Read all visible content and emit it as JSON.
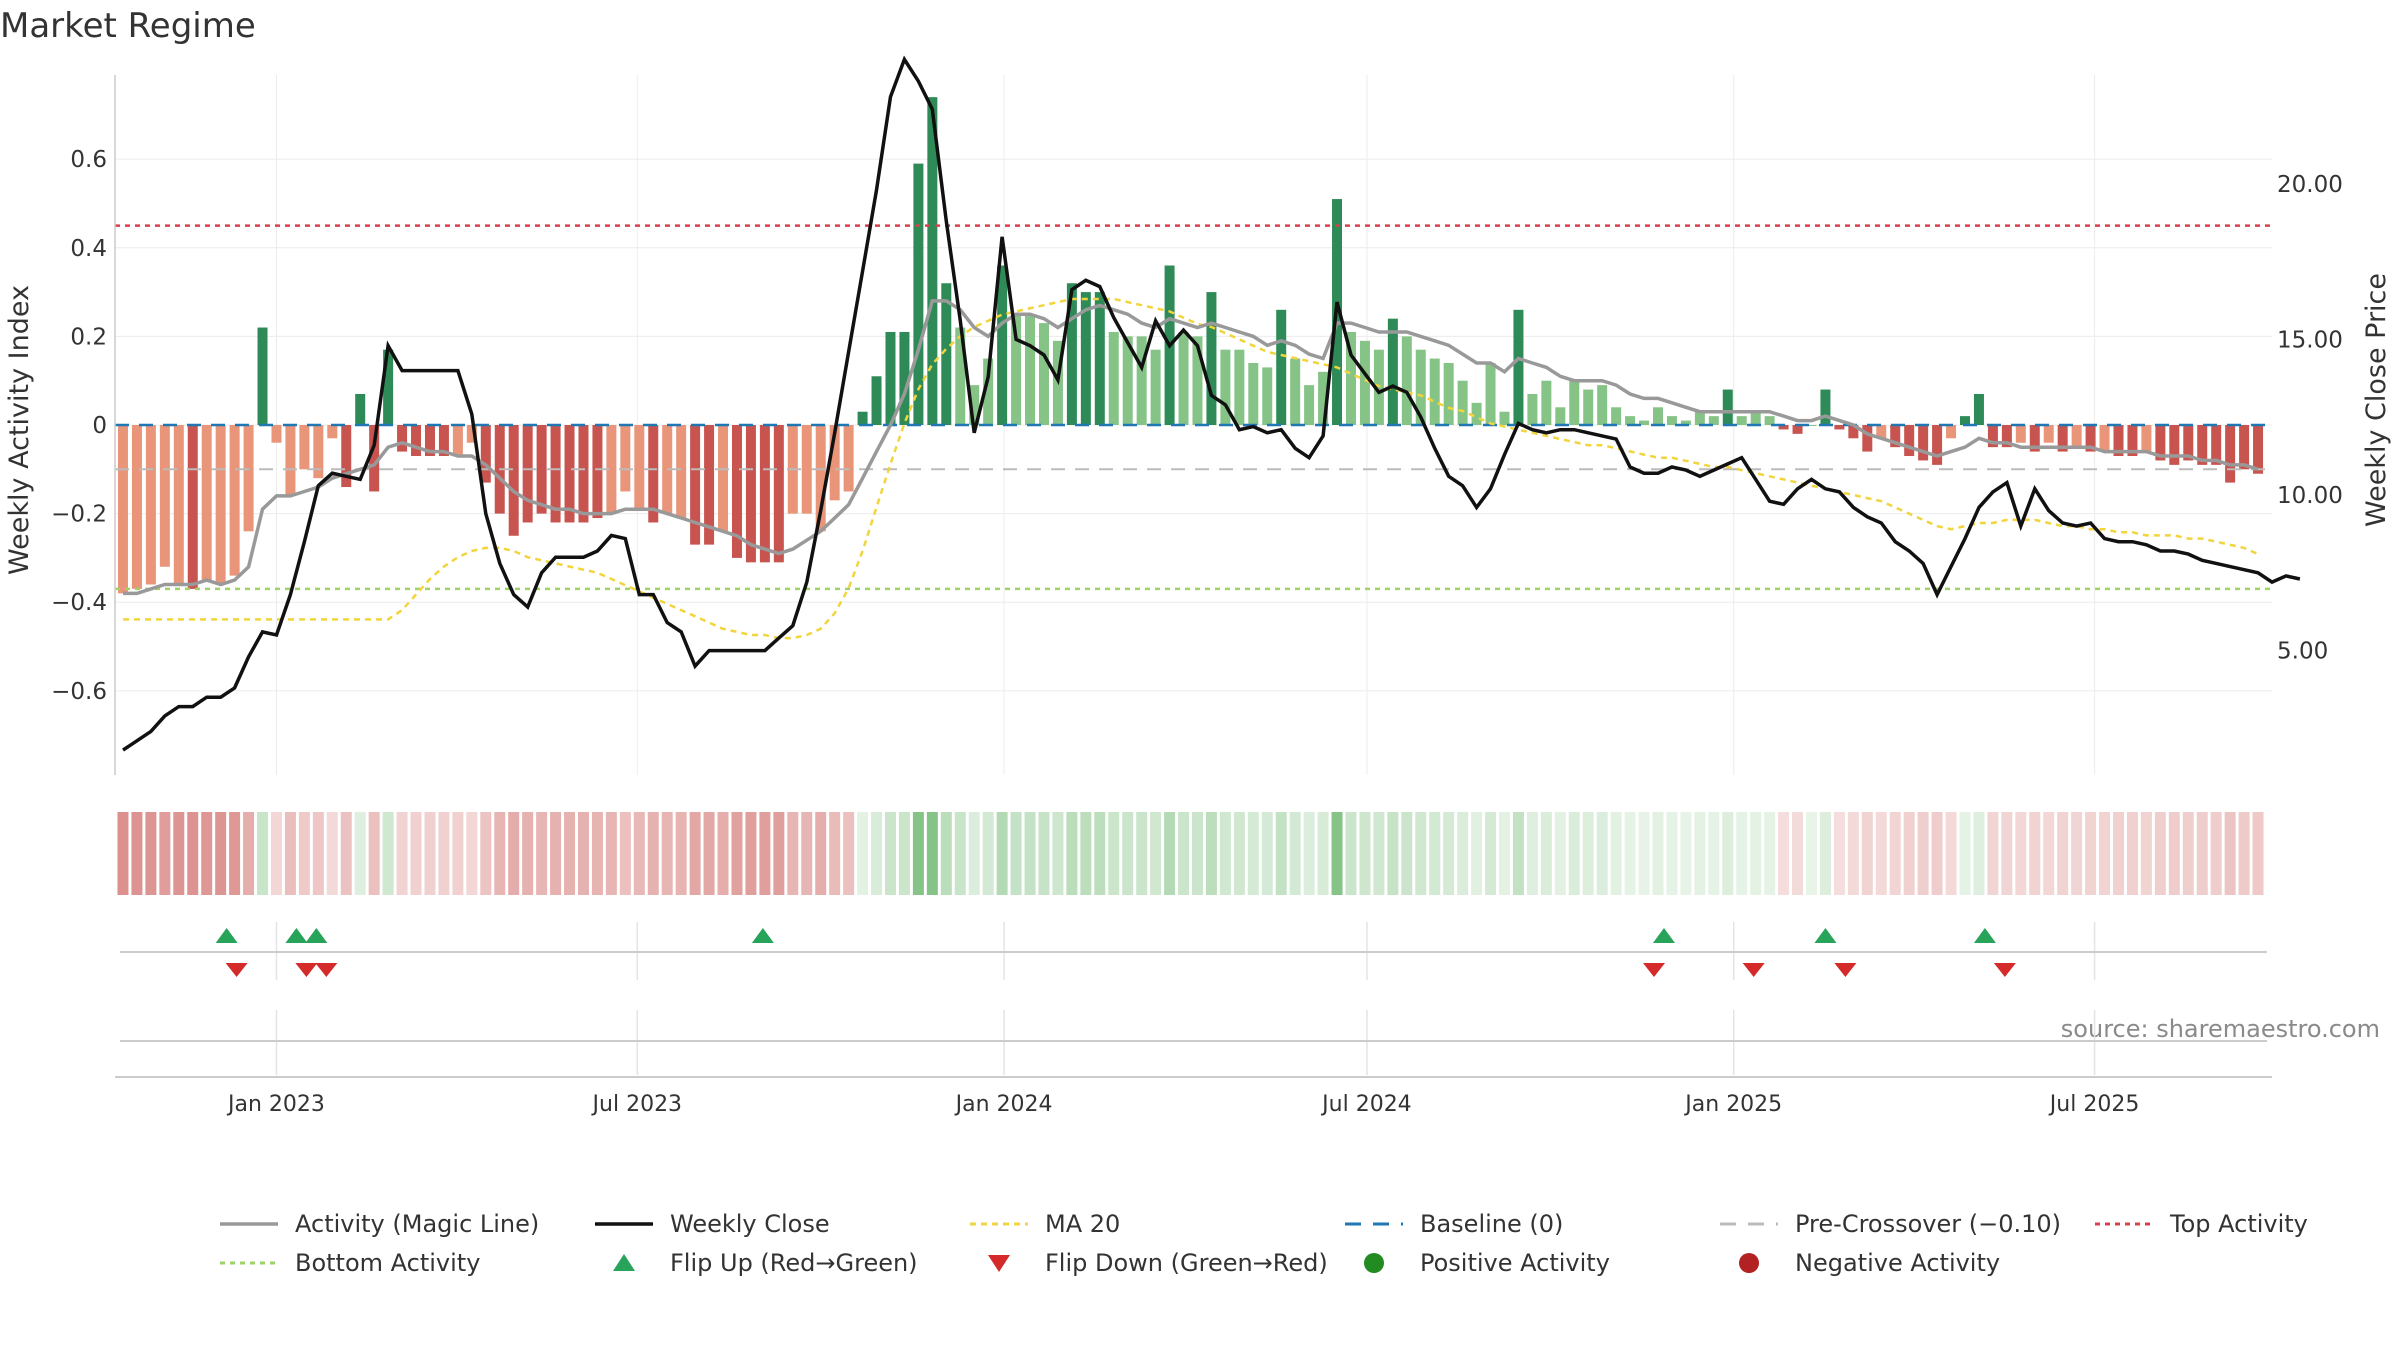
{
  "page": {
    "title": "Market Regime",
    "source": "source: sharemaestro.com"
  },
  "colors": {
    "pos_dark": "#2e8b57",
    "pos_light": "#86c387",
    "neg_dark": "#c85450",
    "neg_light": "#e8957a",
    "magic_line": "#999999",
    "close_line": "#111111",
    "ma20": "#f2d43c",
    "baseline": "#1f77b4",
    "precross": "#bbbbbb",
    "top": "#d9404e",
    "bottom": "#9fd36a",
    "flip_up": "#27a35a",
    "flip_down": "#d42a2a",
    "pos_dot": "#228b22",
    "neg_dot": "#b22222"
  },
  "chart_data": {
    "type": "bar",
    "title": "Market Regime",
    "ylabel": "Weekly Activity Index",
    "y2label": "Weekly Close Price",
    "ylim": [
      -0.79,
      0.79
    ],
    "y2lim": [
      1.0,
      23.5
    ],
    "yticks": [
      0.6,
      0.4,
      0.2,
      0,
      -0.2,
      -0.4,
      -0.6
    ],
    "ytick_labels": [
      "0.6",
      "0.4",
      "0.2",
      "0",
      "−0.2",
      "−0.4",
      "−0.6"
    ],
    "y2ticks": [
      20,
      15,
      10,
      5
    ],
    "y2tick_labels": [
      "20.00",
      "15.00",
      "10.00",
      "5.00"
    ],
    "xlim": [
      "2022-10-12",
      "2025-09-28"
    ],
    "xticks": [
      {
        "date": "2023-01-01",
        "label": "Jan 2023"
      },
      {
        "date": "2023-07-01",
        "label": "Jul 2023"
      },
      {
        "date": "2024-01-01",
        "label": "Jan 2024"
      },
      {
        "date": "2024-07-01",
        "label": "Jul 2024"
      },
      {
        "date": "2025-01-01",
        "label": "Jan 2025"
      },
      {
        "date": "2025-07-01",
        "label": "Jul 2025"
      }
    ],
    "weeks_start": "2022-10-16",
    "activity": [
      -0.38,
      -0.37,
      -0.36,
      -0.32,
      -0.36,
      -0.37,
      -0.35,
      -0.36,
      -0.34,
      -0.24,
      0.22,
      -0.04,
      -0.16,
      -0.1,
      -0.12,
      -0.03,
      -0.14,
      0.07,
      -0.15,
      0.17,
      -0.06,
      -0.07,
      -0.07,
      -0.07,
      -0.07,
      -0.04,
      -0.13,
      -0.2,
      -0.25,
      -0.22,
      -0.2,
      -0.22,
      -0.22,
      -0.22,
      -0.21,
      -0.2,
      -0.15,
      -0.19,
      -0.22,
      -0.2,
      -0.21,
      -0.27,
      -0.27,
      -0.24,
      -0.3,
      -0.31,
      -0.31,
      -0.31,
      -0.2,
      -0.2,
      -0.24,
      -0.17,
      -0.15,
      0.03,
      0.11,
      0.21,
      0.21,
      0.59,
      0.74,
      0.32,
      0.22,
      0.09,
      0.15,
      0.36,
      0.25,
      0.25,
      0.23,
      0.19,
      0.32,
      0.3,
      0.3,
      0.21,
      0.2,
      0.2,
      0.17,
      0.36,
      0.21,
      0.2,
      0.3,
      0.17,
      0.17,
      0.14,
      0.13,
      0.26,
      0.15,
      0.09,
      0.12,
      0.51,
      0.21,
      0.19,
      0.17,
      0.24,
      0.2,
      0.17,
      0.15,
      0.14,
      0.1,
      0.05,
      0.14,
      0.03,
      0.26,
      0.07,
      0.1,
      0.04,
      0.1,
      0.08,
      0.09,
      0.04,
      0.02,
      0.01,
      0.04,
      0.02,
      0.01,
      0.03,
      0.02,
      0.08,
      0.02,
      0.03,
      0.02,
      -0.01,
      -0.02,
      0.0,
      0.08,
      -0.01,
      -0.03,
      -0.06,
      -0.03,
      -0.05,
      -0.07,
      -0.08,
      -0.09,
      -0.03,
      0.02,
      0.07,
      -0.05,
      -0.05,
      -0.04,
      -0.06,
      -0.04,
      -0.06,
      -0.05,
      -0.06,
      -0.06,
      -0.07,
      -0.07,
      -0.06,
      -0.08,
      -0.09,
      -0.08,
      -0.09,
      -0.09,
      -0.13,
      -0.1,
      -0.11
    ],
    "magic_line": [
      -0.38,
      -0.38,
      -0.37,
      -0.36,
      -0.36,
      -0.36,
      -0.35,
      -0.36,
      -0.35,
      -0.32,
      -0.19,
      -0.16,
      -0.16,
      -0.15,
      -0.14,
      -0.12,
      -0.11,
      -0.1,
      -0.09,
      -0.05,
      -0.04,
      -0.05,
      -0.06,
      -0.06,
      -0.07,
      -0.07,
      -0.09,
      -0.12,
      -0.15,
      -0.17,
      -0.18,
      -0.19,
      -0.19,
      -0.2,
      -0.2,
      -0.2,
      -0.19,
      -0.19,
      -0.19,
      -0.2,
      -0.21,
      -0.22,
      -0.23,
      -0.24,
      -0.25,
      -0.27,
      -0.28,
      -0.29,
      -0.28,
      -0.26,
      -0.24,
      -0.21,
      -0.18,
      -0.12,
      -0.06,
      0.0,
      0.07,
      0.17,
      0.28,
      0.28,
      0.26,
      0.22,
      0.2,
      0.23,
      0.25,
      0.25,
      0.24,
      0.22,
      0.24,
      0.26,
      0.27,
      0.26,
      0.25,
      0.23,
      0.22,
      0.24,
      0.23,
      0.22,
      0.23,
      0.22,
      0.21,
      0.2,
      0.18,
      0.19,
      0.18,
      0.16,
      0.15,
      0.23,
      0.23,
      0.22,
      0.21,
      0.21,
      0.21,
      0.2,
      0.19,
      0.18,
      0.16,
      0.14,
      0.14,
      0.12,
      0.15,
      0.14,
      0.13,
      0.11,
      0.1,
      0.1,
      0.1,
      0.09,
      0.07,
      0.06,
      0.06,
      0.05,
      0.04,
      0.03,
      0.03,
      0.03,
      0.03,
      0.03,
      0.03,
      0.02,
      0.01,
      0.01,
      0.02,
      0.01,
      0.0,
      -0.02,
      -0.03,
      -0.04,
      -0.05,
      -0.06,
      -0.07,
      -0.06,
      -0.05,
      -0.03,
      -0.04,
      -0.04,
      -0.05,
      -0.05,
      -0.05,
      -0.05,
      -0.05,
      -0.05,
      -0.06,
      -0.06,
      -0.06,
      -0.06,
      -0.07,
      -0.07,
      -0.07,
      -0.08,
      -0.08,
      -0.09,
      -0.09,
      -0.1
    ],
    "weekly_close": [
      1.8,
      2.1,
      2.4,
      2.9,
      3.2,
      3.2,
      3.5,
      3.5,
      3.8,
      4.8,
      5.6,
      5.5,
      6.8,
      8.5,
      10.3,
      10.7,
      10.6,
      10.5,
      11.6,
      14.8,
      14.0,
      14.0,
      14.0,
      14.0,
      14.0,
      12.6,
      9.4,
      7.8,
      6.8,
      6.4,
      7.5,
      8.0,
      8.0,
      8.0,
      8.2,
      8.7,
      8.6,
      6.8,
      6.8,
      5.9,
      5.6,
      4.5,
      5.0,
      5.0,
      5.0,
      5.0,
      5.0,
      5.4,
      5.8,
      7.2,
      9.5,
      12.0,
      14.6,
      17.2,
      19.8,
      22.8,
      24.0,
      23.3,
      22.4,
      18.8,
      15.6,
      12.0,
      13.8,
      18.3,
      15.0,
      14.8,
      14.5,
      13.7,
      16.6,
      16.9,
      16.7,
      15.7,
      14.9,
      14.1,
      15.6,
      14.8,
      15.3,
      14.8,
      13.2,
      12.9,
      12.1,
      12.2,
      12.0,
      12.1,
      11.5,
      11.2,
      11.9,
      16.2,
      14.5,
      13.9,
      13.3,
      13.5,
      13.3,
      12.5,
      11.5,
      10.6,
      10.3,
      9.6,
      10.2,
      11.3,
      12.3,
      12.1,
      12.0,
      12.1,
      12.1,
      12.0,
      11.9,
      11.8,
      10.9,
      10.7,
      10.7,
      10.9,
      10.8,
      10.6,
      10.8,
      11.0,
      11.2,
      10.5,
      9.8,
      9.7,
      10.2,
      10.5,
      10.2,
      10.1,
      9.6,
      9.3,
      9.1,
      8.5,
      8.2,
      7.8,
      6.8,
      7.7,
      8.6,
      9.6,
      10.1,
      10.4,
      9.0,
      10.2,
      9.5,
      9.1,
      9.0,
      9.1,
      8.6,
      8.5,
      8.5,
      8.4,
      8.2,
      8.2,
      8.1,
      7.9,
      7.8,
      7.7,
      7.6,
      7.5,
      7.2,
      7.4,
      7.3
    ],
    "ma20": [
      6.0,
      6.0,
      6.0,
      6.0,
      6.0,
      6.0,
      6.0,
      6.0,
      6.0,
      6.0,
      6.0,
      6.0,
      6.0,
      6.0,
      6.0,
      6.0,
      6.0,
      6.0,
      6.0,
      6.0,
      6.3,
      6.8,
      7.3,
      7.7,
      8.0,
      8.2,
      8.3,
      8.3,
      8.2,
      8.0,
      7.9,
      7.8,
      7.7,
      7.6,
      7.5,
      7.3,
      7.1,
      6.9,
      6.7,
      6.5,
      6.3,
      6.1,
      5.9,
      5.7,
      5.6,
      5.5,
      5.5,
      5.4,
      5.4,
      5.5,
      5.7,
      6.2,
      7.0,
      8.2,
      9.6,
      11.0,
      12.3,
      13.4,
      14.2,
      14.7,
      15.1,
      15.4,
      15.6,
      15.8,
      15.9,
      16.0,
      16.1,
      16.2,
      16.3,
      16.3,
      16.3,
      16.3,
      16.2,
      16.1,
      16.0,
      15.9,
      15.7,
      15.5,
      15.4,
      15.2,
      15.0,
      14.8,
      14.6,
      14.5,
      14.4,
      14.3,
      14.2,
      14.1,
      13.9,
      13.7,
      13.5,
      13.4,
      13.3,
      13.2,
      13.0,
      12.8,
      12.7,
      12.5,
      12.3,
      12.2,
      12.1,
      12.0,
      11.9,
      11.8,
      11.7,
      11.6,
      11.6,
      11.5,
      11.4,
      11.3,
      11.2,
      11.2,
      11.1,
      11.0,
      10.9,
      10.9,
      10.8,
      10.7,
      10.6,
      10.5,
      10.4,
      10.3,
      10.2,
      10.1,
      10.0,
      9.9,
      9.8,
      9.6,
      9.4,
      9.2,
      9.0,
      8.9,
      9.0,
      9.1,
      9.1,
      9.2,
      9.2,
      9.2,
      9.1,
      9.0,
      9.0,
      8.9,
      8.9,
      8.8,
      8.8,
      8.7,
      8.7,
      8.7,
      8.6,
      8.6,
      8.5,
      8.4,
      8.3,
      8.1
    ],
    "thresholds": {
      "top": 0.45,
      "bottom": -0.37,
      "pre_crossover": -0.1,
      "baseline": 0
    },
    "flip_up_dates": [
      "2022-12-07",
      "2023-01-11",
      "2023-01-21",
      "2023-09-02",
      "2024-11-27",
      "2025-02-16",
      "2025-05-07"
    ],
    "flip_down_dates": [
      "2022-12-12",
      "2023-01-16",
      "2023-01-26",
      "2024-11-22",
      "2025-01-11",
      "2025-02-26",
      "2025-05-17"
    ],
    "legend": [
      {
        "key": "magic",
        "label": "Activity (Magic Line)"
      },
      {
        "key": "close",
        "label": "Weekly Close"
      },
      {
        "key": "ma20",
        "label": "MA 20"
      },
      {
        "key": "baseline",
        "label": "Baseline (0)"
      },
      {
        "key": "precross",
        "label": "Pre-Crossover (−0.10)"
      },
      {
        "key": "top",
        "label": "Top Activity"
      },
      {
        "key": "bottom",
        "label": "Bottom Activity"
      },
      {
        "key": "flipup",
        "label": "Flip Up (Red→Green)"
      },
      {
        "key": "flipdown",
        "label": "Flip Down (Green→Red)"
      },
      {
        "key": "posdot",
        "label": "Positive Activity"
      },
      {
        "key": "negdot",
        "label": "Negative Activity"
      }
    ],
    "legend_placement": "bottom",
    "grid": true
  }
}
